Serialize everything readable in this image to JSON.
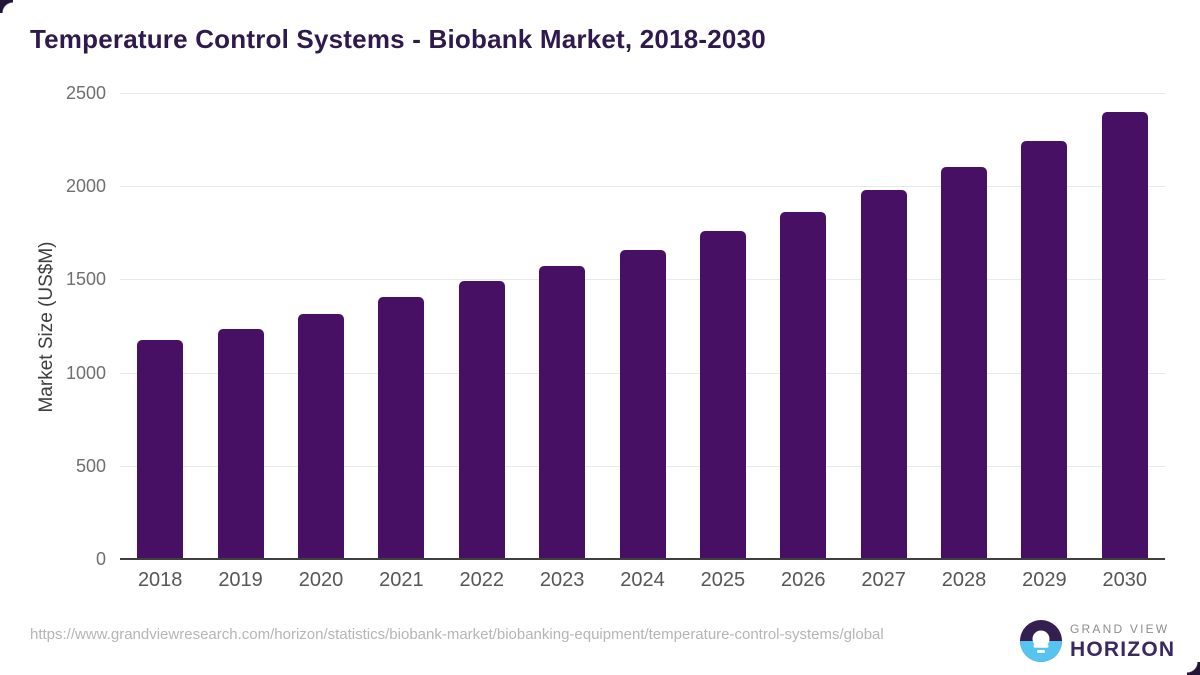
{
  "header": {
    "title": "Temperature Control Systems - Biobank Market, 2018-2030"
  },
  "chart_data": {
    "type": "bar",
    "title": "Temperature Control Systems - Biobank Market, 2018-2030",
    "xlabel": "",
    "ylabel": "Market Size (US$M)",
    "categories": [
      "2018",
      "2019",
      "2020",
      "2021",
      "2022",
      "2023",
      "2024",
      "2025",
      "2026",
      "2027",
      "2028",
      "2029",
      "2030"
    ],
    "values": [
      1175,
      1235,
      1315,
      1405,
      1490,
      1570,
      1660,
      1760,
      1862,
      1980,
      2104,
      2242,
      2398
    ],
    "ylim": [
      0,
      2500
    ],
    "yticks": [
      0,
      500,
      1000,
      1500,
      2000,
      2500
    ],
    "grid": true,
    "legend": "none",
    "bar_color": "#471064"
  },
  "footer": {
    "source_url": "https://www.grandviewresearch.com/horizon/statistics/biobank-market/biobanking-equipment/temperature-control-systems/global",
    "logo": {
      "line1": "GRAND VIEW",
      "line2": "HORIZON"
    }
  },
  "colors": {
    "bar": "#471064",
    "title_text": "#2e1a4d",
    "axis_line": "#3f3f3f",
    "gridline": "#e9e9e9",
    "tick_text": "#6f6f6f",
    "url_text": "#b5b5b5",
    "logo_dark_purple": "#332050",
    "logo_light_blue": "#57c4f0",
    "logo_gray_text": "#8e8e8e",
    "logo_purple_text": "#392960"
  }
}
